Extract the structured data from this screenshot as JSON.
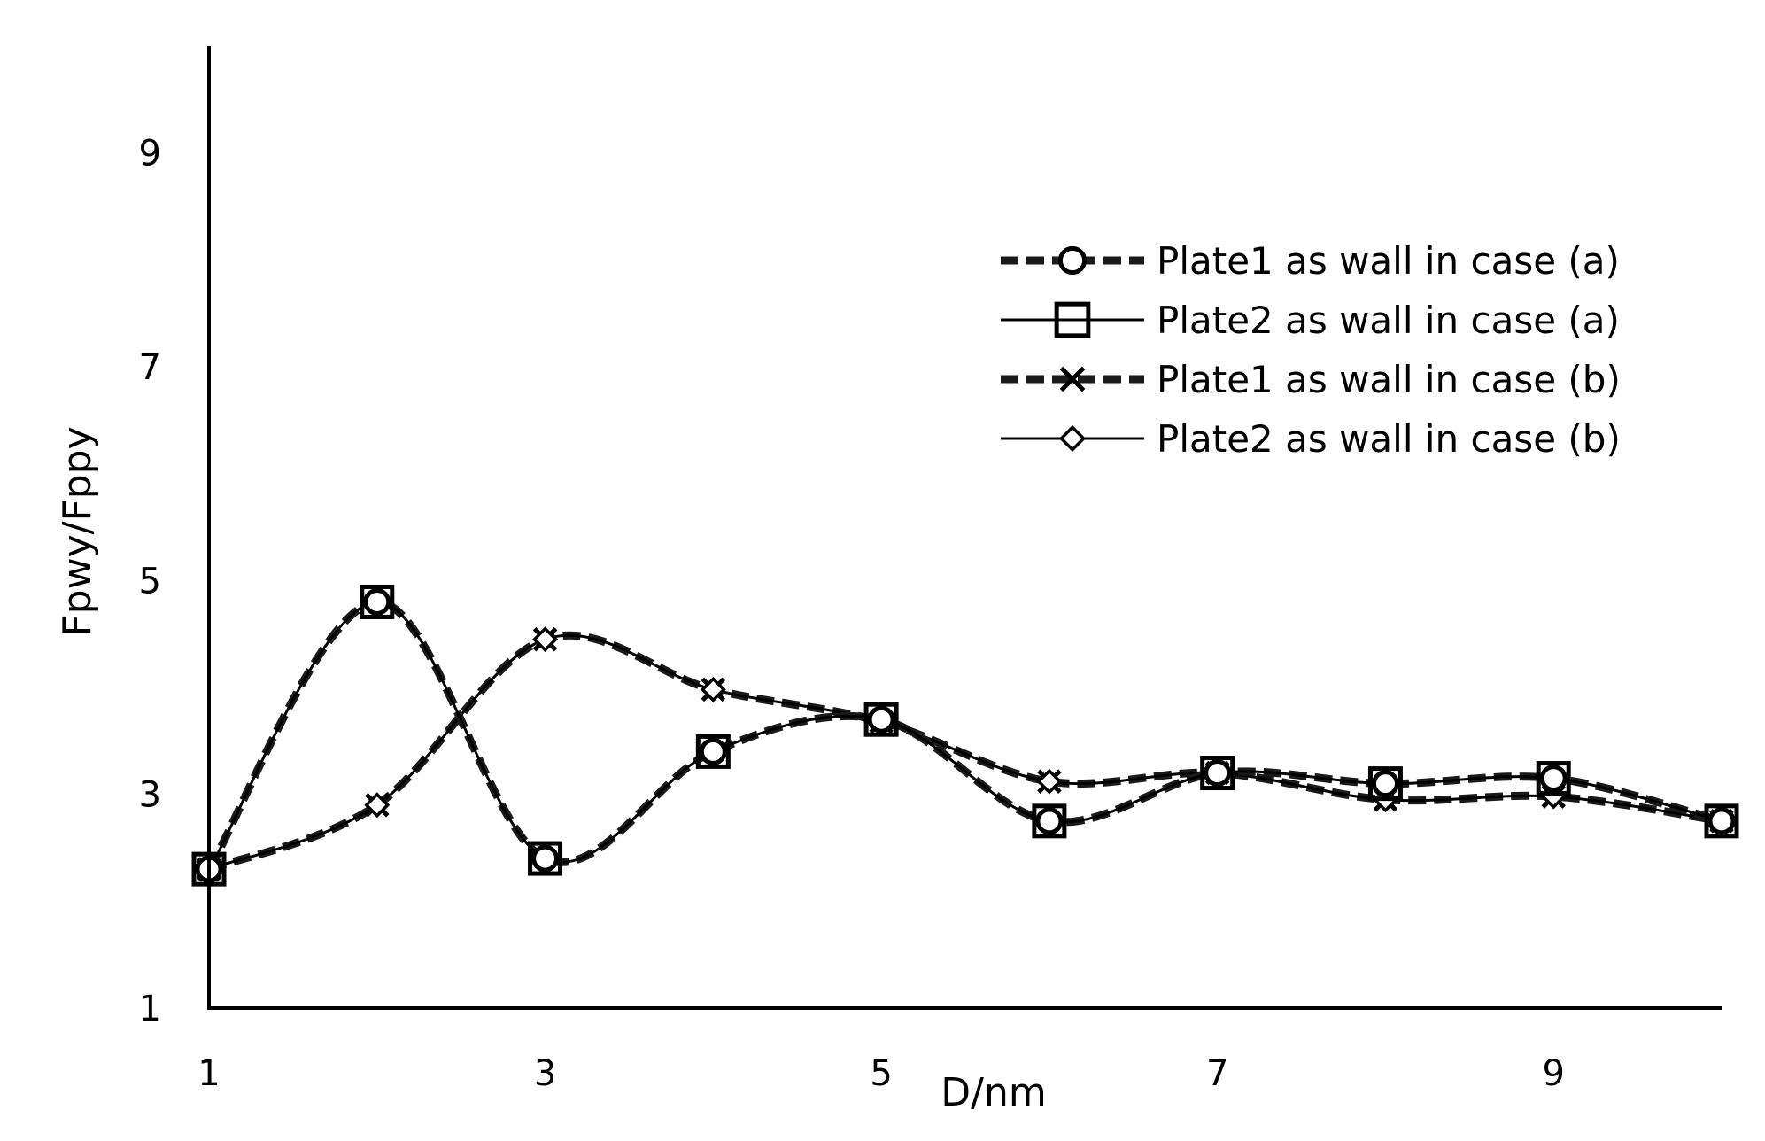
{
  "chart_data": {
    "type": "line",
    "title": "",
    "xlabel": "D/nm",
    "ylabel": "Fpwy/Fppy",
    "xlim": [
      1,
      10
    ],
    "ylim": [
      1,
      10
    ],
    "xticks": [
      1,
      3,
      5,
      7,
      9
    ],
    "yticks": [
      1,
      3,
      5,
      7,
      9
    ],
    "grid": false,
    "legend_position": "top-right",
    "x": [
      1,
      2,
      3,
      4,
      5,
      6,
      7,
      8,
      9,
      10
    ],
    "series": [
      {
        "name": "Plate1 as wall in case (a)",
        "marker": "circle",
        "line": "dashed-thick",
        "values": [
          2.3,
          4.8,
          2.4,
          3.4,
          3.7,
          2.75,
          3.2,
          3.1,
          3.15,
          2.75
        ]
      },
      {
        "name": "Plate2 as wall in case (a)",
        "marker": "square",
        "line": "solid-thin",
        "values": [
          2.3,
          4.8,
          2.4,
          3.4,
          3.7,
          2.75,
          3.2,
          3.1,
          3.15,
          2.75
        ]
      },
      {
        "name": "Plate1 as wall in case (b)",
        "marker": "x",
        "line": "dashed-thick",
        "values": [
          2.3,
          2.9,
          4.45,
          3.98,
          3.68,
          3.12,
          3.2,
          2.95,
          2.98,
          2.75
        ]
      },
      {
        "name": "Plate2 as wall in case (b)",
        "marker": "diamond",
        "line": "solid-thin",
        "values": [
          2.3,
          2.9,
          4.45,
          3.98,
          3.68,
          3.12,
          3.2,
          2.95,
          2.98,
          2.75
        ]
      }
    ]
  }
}
